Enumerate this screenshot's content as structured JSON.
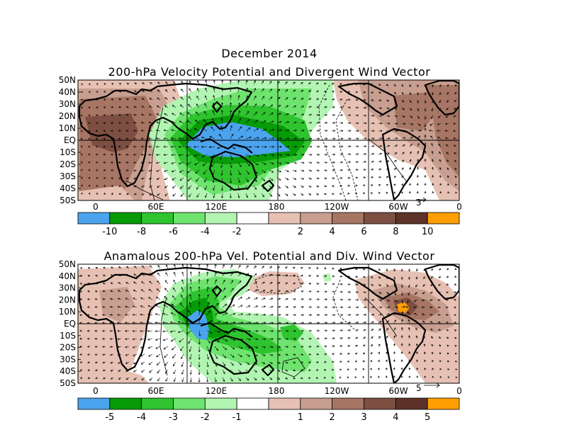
{
  "figure": {
    "month_title": "December 2014",
    "colors": {
      "land_outline": "#000000",
      "frame": "#000000"
    }
  },
  "panels": [
    {
      "id": "total",
      "title": "200-hPa Velocity Potential and Divergent Wind Vector",
      "lat_labels": [
        "50N",
        "40N",
        "30N",
        "20N",
        "10N",
        "EQ",
        "10S",
        "20S",
        "30S",
        "40S",
        "50S"
      ],
      "lon_labels": [
        "0",
        "60E",
        "120E",
        "180",
        "120W",
        "60W",
        "0"
      ],
      "vector_ref": "3",
      "colorbar": {
        "colors": [
          "#4ba3ee",
          "#079b07",
          "#2fc42f",
          "#6ee36e",
          "#b2f4b2",
          "#ffffff",
          "#e6c1b3",
          "#c79e8f",
          "#a77563",
          "#7d4f42",
          "#5d3329",
          "#ff9e00"
        ],
        "labels": [
          "-10",
          "-8",
          "-6",
          "-4",
          "-2",
          "2",
          "4",
          "6",
          "8",
          "10"
        ]
      }
    },
    {
      "id": "anomaly",
      "title": "Anamalous 200-hPa Vel. Potential and Div. Wind Vector",
      "lat_labels": [
        "50N",
        "40N",
        "30N",
        "20N",
        "10N",
        "EQ",
        "10S",
        "20S",
        "30S",
        "40S",
        "50S"
      ],
      "lon_labels": [
        "0",
        "60E",
        "120E",
        "180",
        "120W",
        "60W",
        "0"
      ],
      "vector_ref": "5",
      "colorbar": {
        "colors": [
          "#4ba3ee",
          "#079b07",
          "#2fc42f",
          "#6ee36e",
          "#b2f4b2",
          "#ffffff",
          "#e6c1b3",
          "#c79e8f",
          "#a77563",
          "#7d4f42",
          "#5d3329",
          "#ff9e00"
        ],
        "labels": [
          "-5",
          "-4",
          "-3",
          "-2",
          "-1",
          "1",
          "2",
          "3",
          "4",
          "5"
        ]
      }
    }
  ]
}
